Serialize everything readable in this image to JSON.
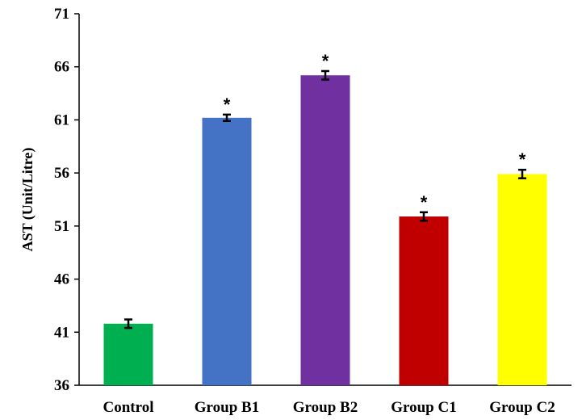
{
  "chart_data": {
    "type": "bar",
    "title": "",
    "xlabel": "",
    "ylabel": "AST (Unit/Litre)",
    "ylim": [
      36,
      71
    ],
    "yticks": [
      36,
      41,
      46,
      51,
      56,
      61,
      66,
      71
    ],
    "categories": [
      "Control",
      "Group B1",
      "Group B2",
      "Group C1",
      "Group C2"
    ],
    "values": [
      41.8,
      61.2,
      65.2,
      51.9,
      55.9
    ],
    "errors": [
      0.4,
      0.3,
      0.4,
      0.4,
      0.4
    ],
    "colors": [
      "#00b050",
      "#4472c4",
      "#7030a0",
      "#c00000",
      "#ffff00"
    ],
    "significance": [
      "",
      "*",
      "*",
      "*",
      "*"
    ],
    "grid": false,
    "legend": "none"
  }
}
